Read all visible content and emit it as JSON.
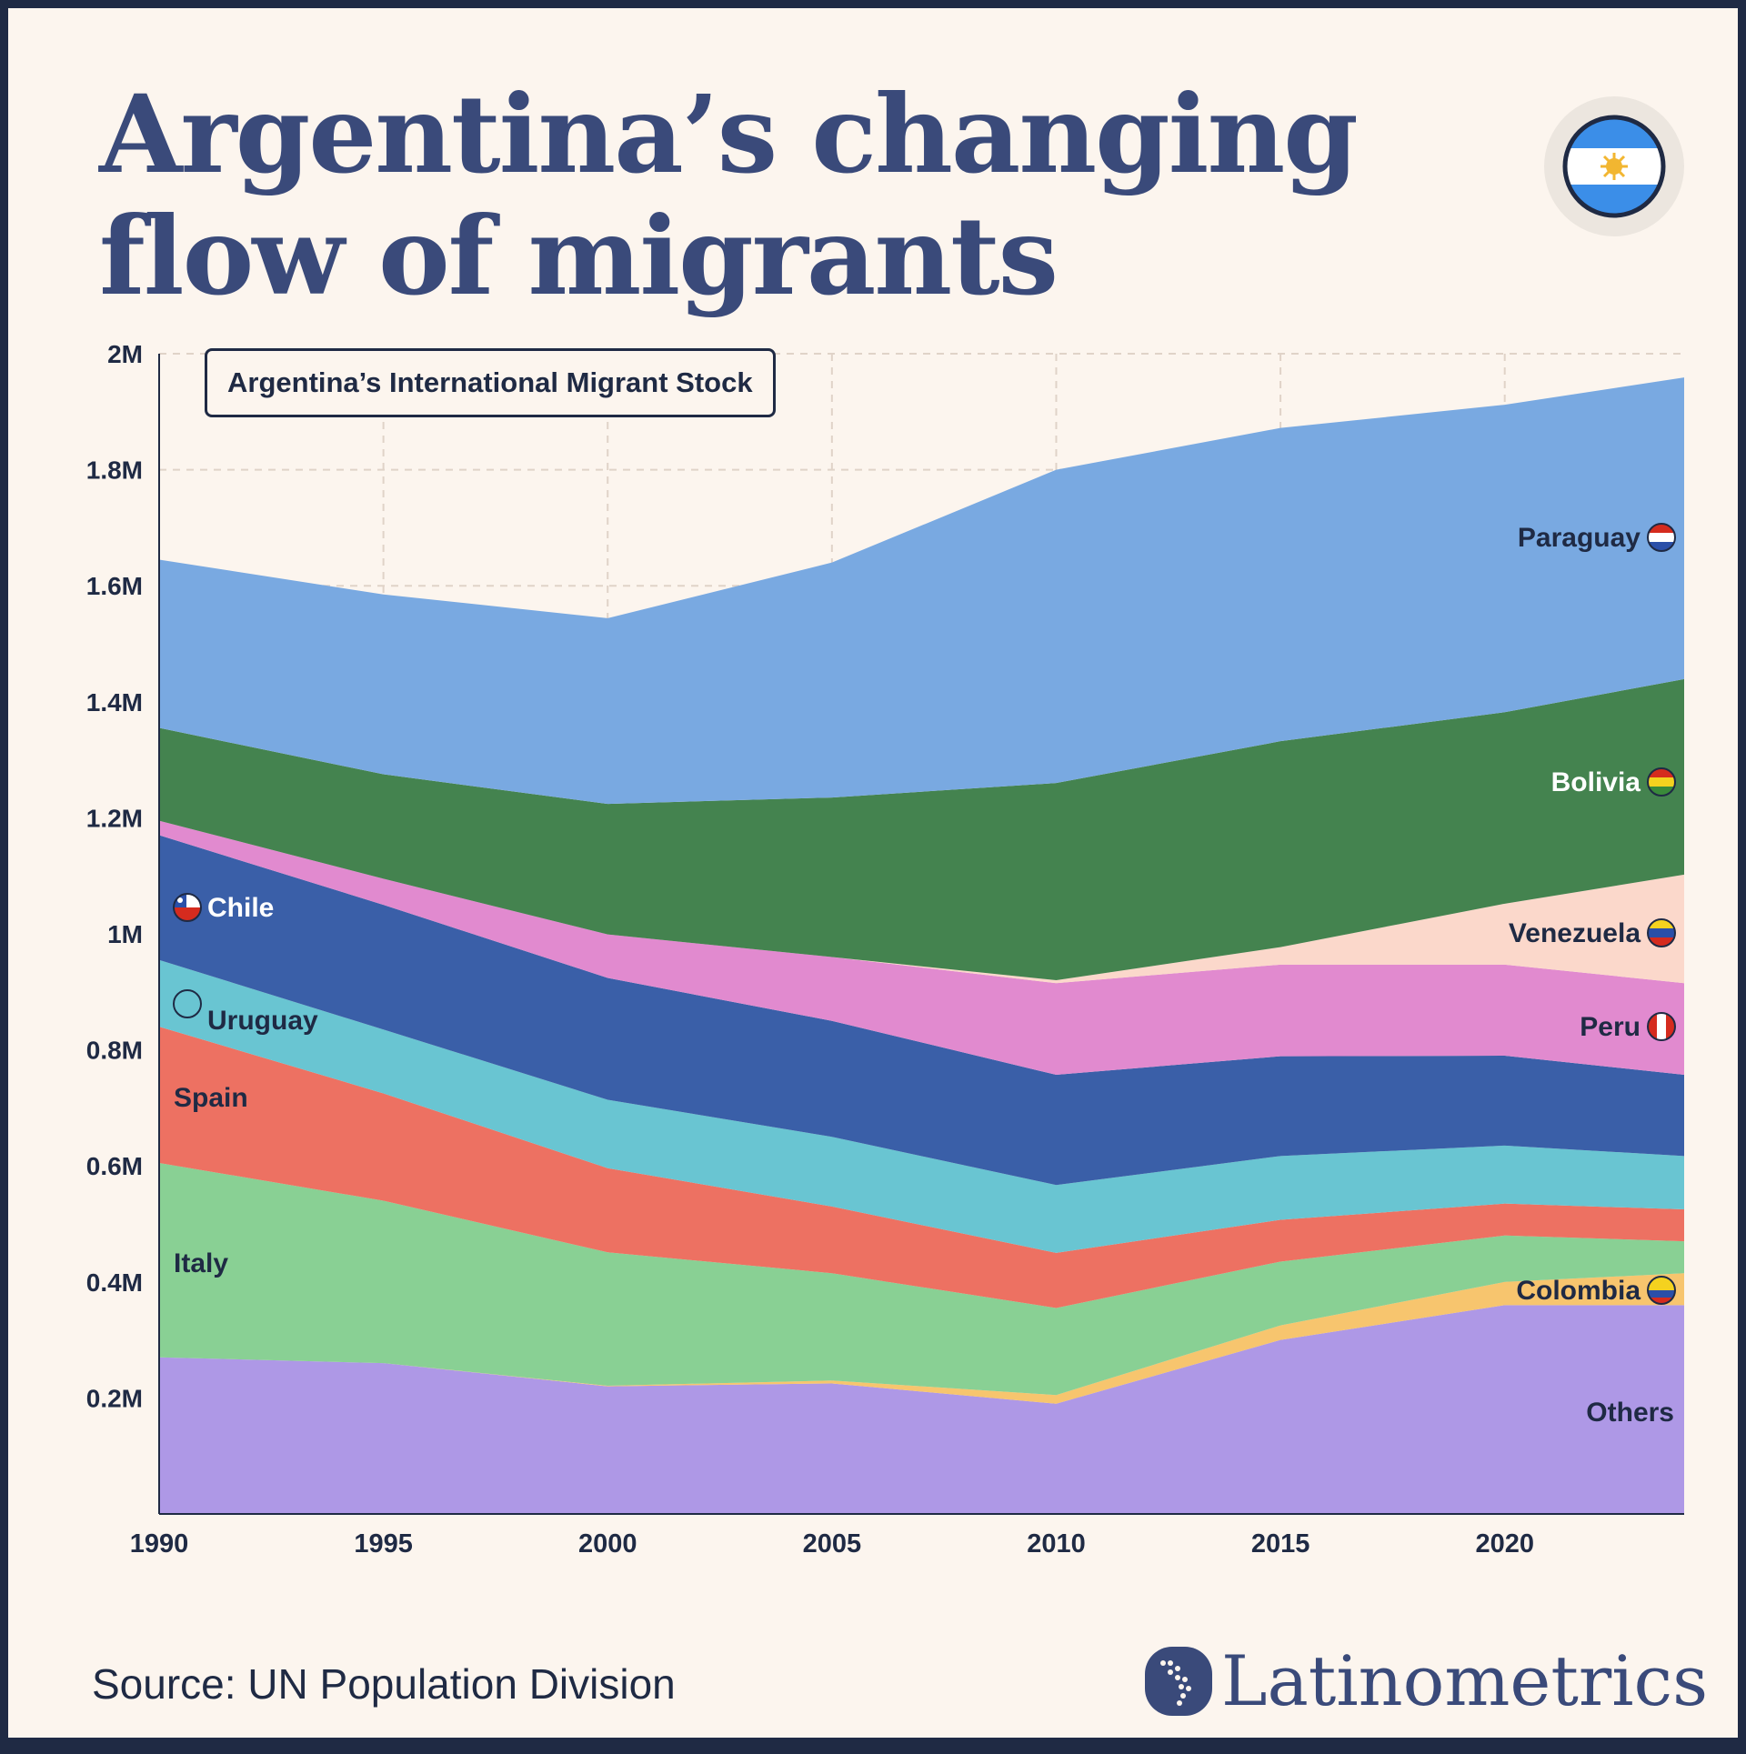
{
  "title": "Argentina’s changing flow of migrants",
  "chart_box_label": "Argentina’s International Migrant Stock",
  "source": "Source: UN Population Division",
  "brand": "Latinometrics",
  "chart_data": {
    "type": "area",
    "stacked": true,
    "title": "Argentina’s International Migrant Stock",
    "xlabel": "",
    "ylabel": "",
    "x": [
      1990,
      1995,
      2000,
      2005,
      2010,
      2015,
      2020,
      2024
    ],
    "xticks": [
      1990,
      1995,
      2000,
      2005,
      2010,
      2015,
      2020
    ],
    "xtick_labels": [
      "1990",
      "1995",
      "2000",
      "2005",
      "2010",
      "2015",
      "2020"
    ],
    "xlim": [
      1990,
      2024
    ],
    "ylim": [
      0,
      2000000
    ],
    "yticks": [
      200000,
      400000,
      600000,
      800000,
      1000000,
      1200000,
      1400000,
      1600000,
      1800000,
      2000000
    ],
    "ytick_labels": [
      "0.2M",
      "0.4M",
      "0.6M",
      "0.8M",
      "1M",
      "1.2M",
      "1.4M",
      "1.6M",
      "1.8M",
      "2M"
    ],
    "grid": true,
    "series": [
      {
        "name": "Others",
        "label": "Others",
        "color": "#ae98e6",
        "values": [
          270000,
          260000,
          220000,
          225000,
          190000,
          300000,
          360000,
          360000
        ]
      },
      {
        "name": "Colombia",
        "label": "Colombia",
        "color": "#f7c56e",
        "flag": "colombia",
        "values": [
          0,
          0,
          1000,
          5000,
          15000,
          25000,
          40000,
          55000
        ]
      },
      {
        "name": "Italy",
        "label": "Italy",
        "color": "#89d094",
        "values": [
          335000,
          280000,
          230000,
          185000,
          150000,
          110000,
          80000,
          55000
        ]
      },
      {
        "name": "Spain",
        "label": "Spain",
        "color": "#ed7162",
        "values": [
          235000,
          185000,
          145000,
          115000,
          95000,
          72000,
          55000,
          55000
        ]
      },
      {
        "name": "Uruguay",
        "label": "Uruguay",
        "color": "#69c5d2",
        "values": [
          115000,
          110000,
          118000,
          120000,
          117000,
          110000,
          100000,
          92000
        ]
      },
      {
        "name": "Chile",
        "label": "Chile",
        "color": "#3a5fa8",
        "flag": "chile",
        "values": [
          215000,
          215000,
          210000,
          200000,
          190000,
          172000,
          155000,
          140000
        ]
      },
      {
        "name": "Peru",
        "label": "Peru",
        "color": "#e18acf",
        "flag": "peru",
        "values": [
          25000,
          45000,
          75000,
          110000,
          158000,
          158000,
          157000,
          158000
        ]
      },
      {
        "name": "Venezuela",
        "label": "Venezuela",
        "color": "#fbd8cb",
        "flag": "venezuela",
        "values": [
          0,
          0,
          0,
          0,
          5000,
          30000,
          105000,
          187000
        ]
      },
      {
        "name": "Bolivia",
        "label": "Bolivia",
        "color": "#44834f",
        "flag": "bolivia",
        "values": [
          160000,
          180000,
          225000,
          275000,
          340000,
          355000,
          330000,
          337000
        ]
      },
      {
        "name": "Paraguay",
        "label": "Paraguay",
        "color": "#79a9e1",
        "flag": "paraguay",
        "values": [
          290000,
          310000,
          320000,
          405000,
          540000,
          540000,
          530000,
          520000
        ]
      }
    ]
  }
}
